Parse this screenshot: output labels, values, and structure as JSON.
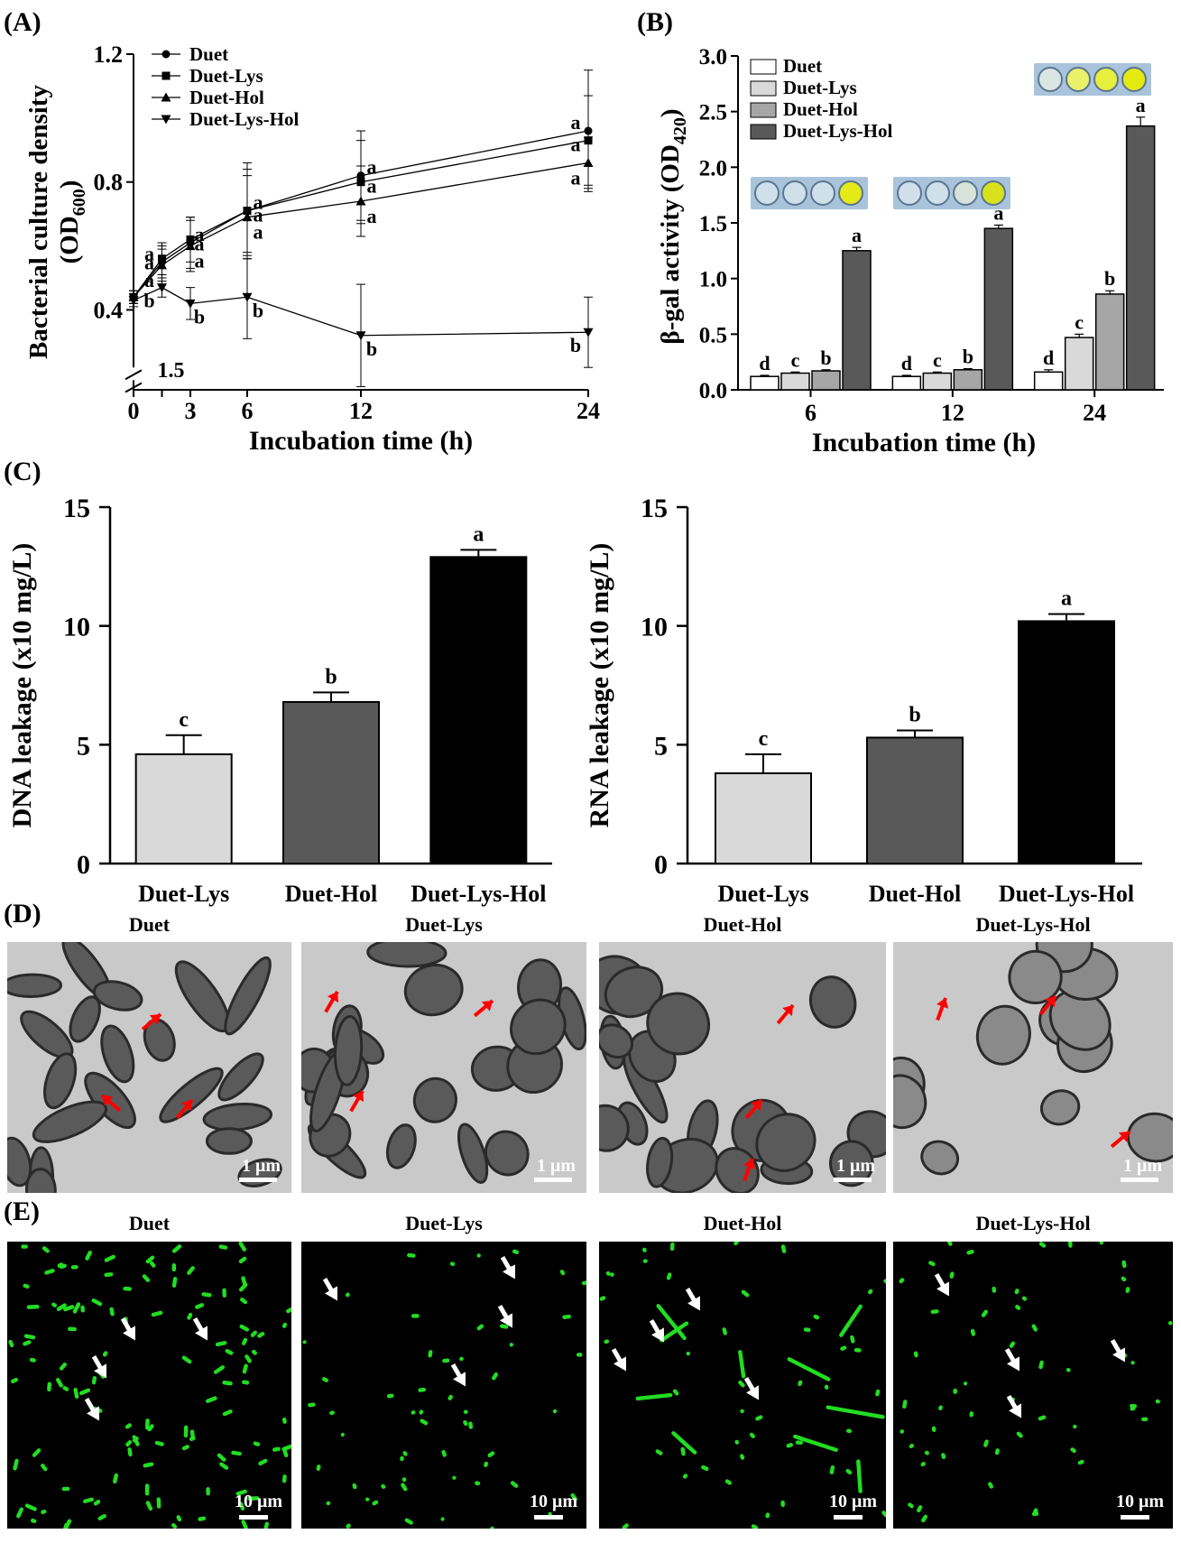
{
  "panel_labels": {
    "A": "(A)",
    "B": "(B)",
    "C": "(C)",
    "D": "(D)",
    "E": "(E)"
  },
  "chart_data": [
    {
      "id": "A",
      "type": "line",
      "ylabel": "Bacterial culture density (OD600)",
      "ylabel_main": "Bacterial culture density",
      "ylabel_unit": "(OD",
      "ylabel_sub": "600",
      "ylabel_close": ")",
      "xlabel": "Incubation time (h)",
      "x": [
        0,
        1.5,
        3,
        6,
        12,
        24
      ],
      "x_ticks": [
        "0",
        "1.5",
        "3",
        "6",
        "12",
        "24"
      ],
      "y_ticks": [
        "0.4",
        "0.8",
        "1.2"
      ],
      "ylim": [
        0.15,
        1.2
      ],
      "axis_break": true,
      "legend_position": "top-left",
      "series": [
        {
          "name": "Duet",
          "marker": "circle",
          "values": [
            0.44,
            0.55,
            0.61,
            0.71,
            0.82,
            0.96
          ],
          "err": [
            0.02,
            0.05,
            0.08,
            0.15,
            0.14,
            0.19
          ],
          "labels": [
            "",
            "a",
            "a",
            "a",
            "a",
            "a"
          ]
        },
        {
          "name": "Duet-Lys",
          "marker": "square",
          "values": [
            0.44,
            0.56,
            0.62,
            0.71,
            0.8,
            0.93
          ],
          "err": [
            0.02,
            0.05,
            0.07,
            0.13,
            0.13,
            0.14
          ],
          "labels": [
            "",
            "a",
            "a",
            "a",
            "a",
            "a"
          ]
        },
        {
          "name": "Duet-Hol",
          "marker": "triangle-up",
          "values": [
            0.44,
            0.54,
            0.6,
            0.69,
            0.74,
            0.86
          ],
          "err": [
            0.02,
            0.05,
            0.08,
            0.13,
            0.11,
            0.08
          ],
          "labels": [
            "",
            "a",
            "a",
            "a",
            "a",
            "a"
          ]
        },
        {
          "name": "Duet-Lys-Hol",
          "marker": "triangle-down",
          "values": [
            0.43,
            0.47,
            0.42,
            0.44,
            0.32,
            0.33
          ],
          "err": [
            0.02,
            0.03,
            0.05,
            0.13,
            0.16,
            0.11
          ],
          "labels": [
            "",
            "b",
            "b",
            "b",
            "b",
            "b"
          ]
        }
      ]
    },
    {
      "id": "B",
      "type": "bar",
      "ylabel": "β-gal activity (OD420)",
      "ylabel_main": "β-gal activity (OD",
      "ylabel_sub": "420",
      "ylabel_close": ")",
      "xlabel": "Incubation time (h)",
      "categories": [
        "6",
        "12",
        "24"
      ],
      "y_ticks": [
        "0.0",
        "0.5",
        "1.0",
        "1.5",
        "2.0",
        "2.5",
        "3.0"
      ],
      "ylim": [
        0,
        3.0
      ],
      "legend_position": "top-left",
      "series": [
        {
          "name": "Duet",
          "color": "#ffffff",
          "values": [
            0.12,
            0.12,
            0.16
          ],
          "err": [
            0.01,
            0.01,
            0.02
          ],
          "labels": [
            "d",
            "d",
            "d"
          ]
        },
        {
          "name": "Duet-Lys",
          "color": "#d9d9d9",
          "values": [
            0.15,
            0.15,
            0.47
          ],
          "err": [
            0.01,
            0.01,
            0.03
          ],
          "labels": [
            "c",
            "c",
            "c"
          ]
        },
        {
          "name": "Duet-Hol",
          "color": "#a6a6a6",
          "values": [
            0.17,
            0.18,
            0.86
          ],
          "err": [
            0.01,
            0.01,
            0.03
          ],
          "labels": [
            "b",
            "b",
            "b"
          ]
        },
        {
          "name": "Duet-Lys-Hol",
          "color": "#595959",
          "values": [
            1.25,
            1.45,
            2.37
          ],
          "err": [
            0.03,
            0.03,
            0.08
          ],
          "labels": [
            "a",
            "a",
            "a"
          ]
        }
      ]
    },
    {
      "id": "C-left",
      "type": "bar",
      "ylabel": "DNA leakage (x10 mg/L)",
      "categories": [
        "Duet-Lys",
        "Duet-Hol",
        "Duet-Lys-Hol"
      ],
      "values": [
        4.6,
        6.8,
        12.9
      ],
      "err": [
        0.8,
        0.4,
        0.3
      ],
      "labels": [
        "c",
        "b",
        "a"
      ],
      "colors": [
        "#d9d9d9",
        "#595959",
        "#000000"
      ],
      "y_ticks": [
        "0",
        "5",
        "10",
        "15"
      ],
      "ylim": [
        0,
        15
      ]
    },
    {
      "id": "C-right",
      "type": "bar",
      "ylabel": "RNA leakage (x10 mg/L)",
      "categories": [
        "Duet-Lys",
        "Duet-Hol",
        "Duet-Lys-Hol"
      ],
      "values": [
        3.8,
        5.3,
        10.2
      ],
      "err": [
        0.8,
        0.3,
        0.3
      ],
      "labels": [
        "c",
        "b",
        "a"
      ],
      "colors": [
        "#d9d9d9",
        "#595959",
        "#000000"
      ],
      "y_ticks": [
        "0",
        "5",
        "10",
        "15"
      ],
      "ylim": [
        0,
        15
      ]
    }
  ],
  "panel_D": {
    "titles": [
      "Duet",
      "Duet-Lys",
      "Duet-Hol",
      "Duet-Lys-Hol"
    ],
    "scale_bar": "1 μm",
    "arrow_color": "#ff0000"
  },
  "panel_E": {
    "titles": [
      "Duet",
      "Duet-Lys",
      "Duet-Hol",
      "Duet-Lys-Hol"
    ],
    "scale_bar": "10 μm",
    "cell_color": "#22dd22",
    "arrow_color": "#ffffff"
  }
}
